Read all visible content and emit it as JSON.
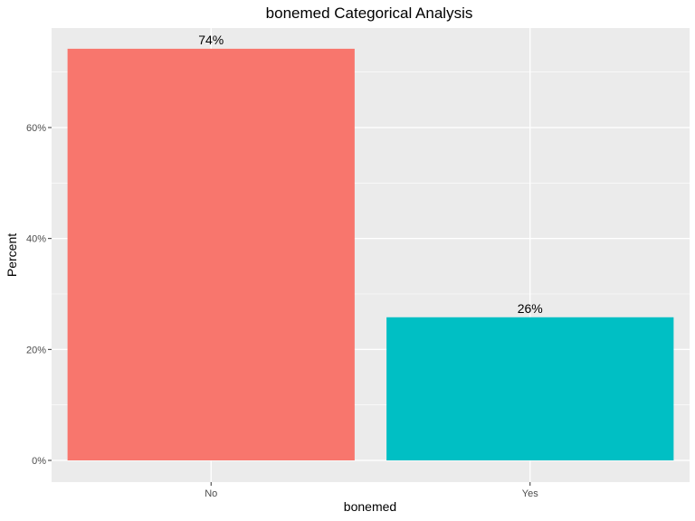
{
  "chart_data": {
    "type": "bar",
    "title": "bonemed Categorical Analysis",
    "xlabel": "bonemed",
    "ylabel": "Percent",
    "categories": [
      "No",
      "Yes"
    ],
    "values": [
      74.2,
      25.8
    ],
    "data_labels": [
      "74%",
      "26%"
    ],
    "ylim": [
      0,
      78
    ],
    "yticks": [
      0,
      20,
      40,
      60
    ],
    "ytick_labels": [
      "0%",
      "20%",
      "40%",
      "60%"
    ],
    "colors": [
      "#F8766D",
      "#00BFC4"
    ],
    "panel_background": "#EBEBEB",
    "grid": true,
    "legend": "none"
  }
}
